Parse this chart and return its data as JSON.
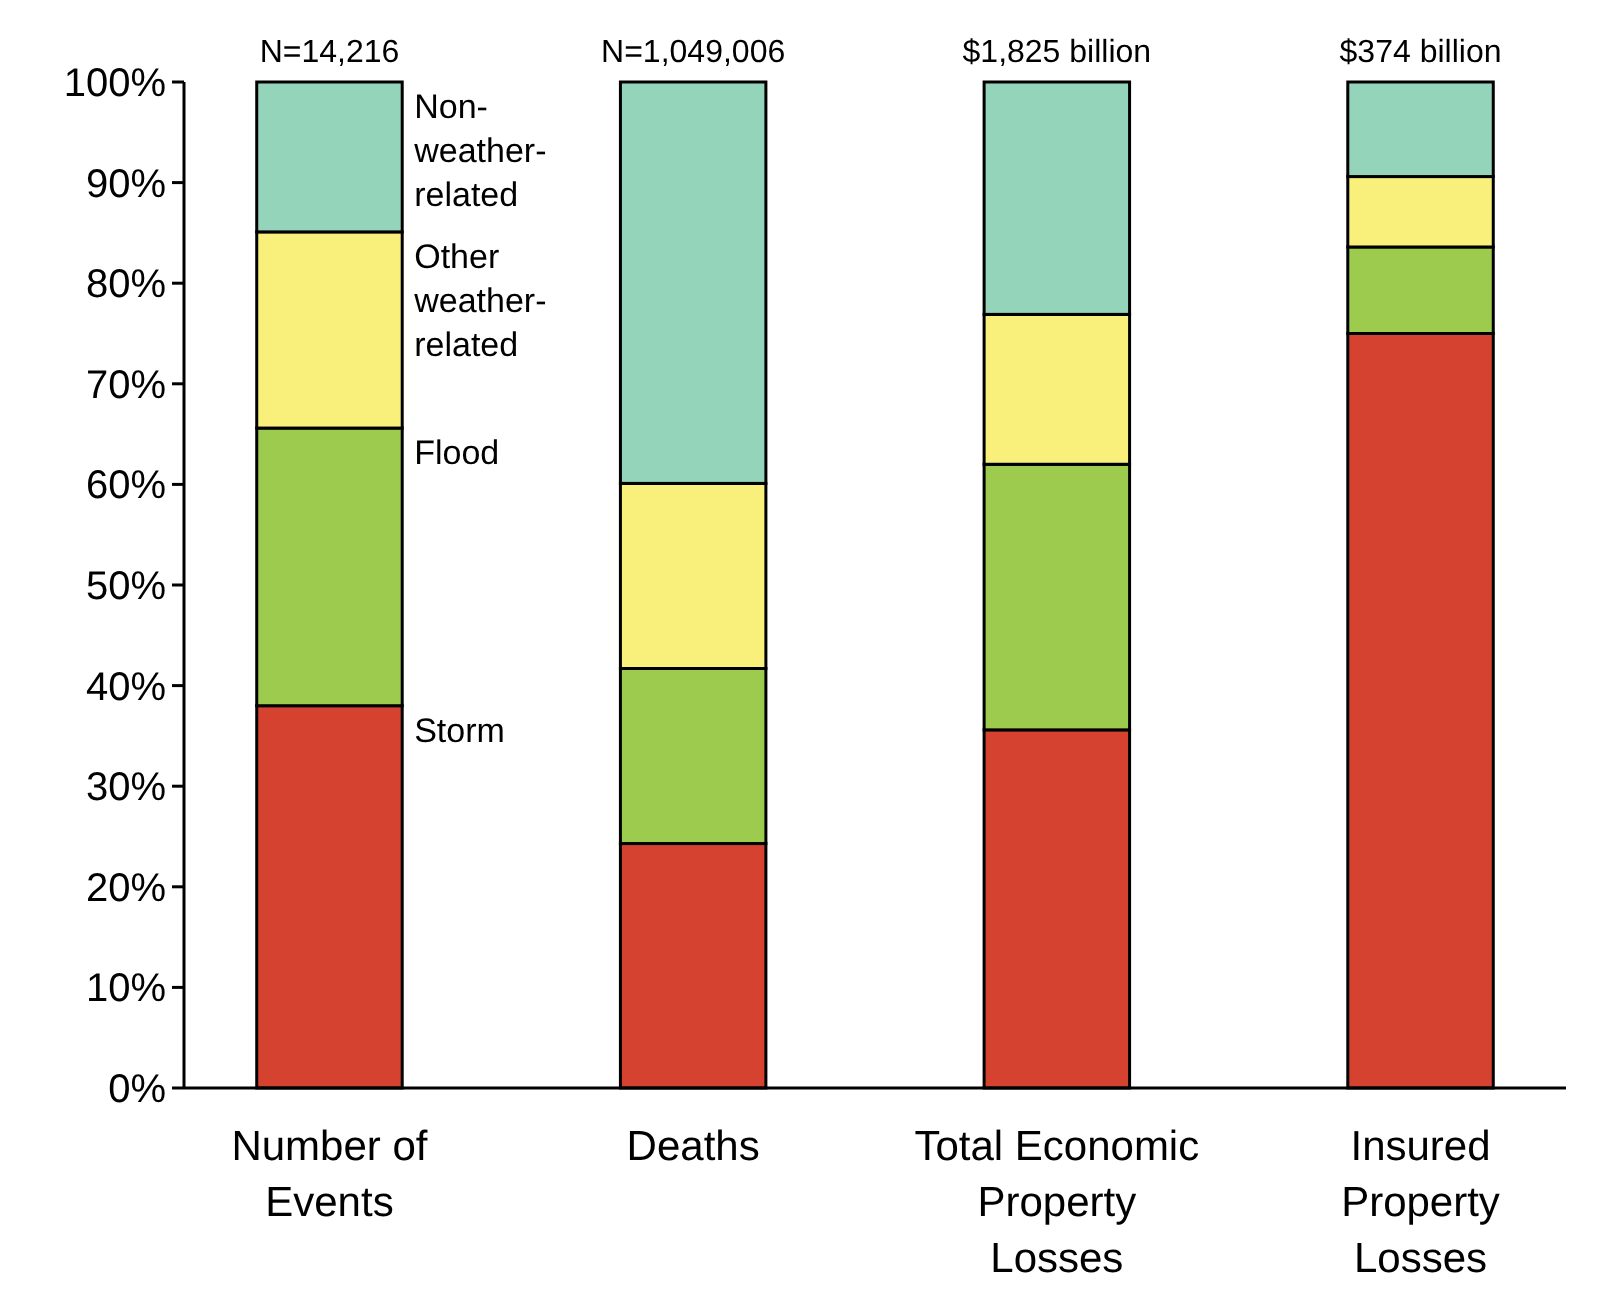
{
  "chart_data": {
    "type": "bar",
    "stacked": true,
    "categories": [
      "Number of Events",
      "Deaths",
      "Total Economic Property Losses",
      "Insured Property Losses"
    ],
    "series": [
      {
        "name": "Storm",
        "color": "#d64230",
        "values": [
          38.0,
          24.3,
          35.6,
          75.0
        ]
      },
      {
        "name": "Flood",
        "color": "#9ccb4e",
        "values": [
          27.6,
          17.4,
          26.4,
          8.6
        ]
      },
      {
        "name": "Other weather-related",
        "color": "#f8f07a",
        "values": [
          19.5,
          18.4,
          14.9,
          7.0
        ]
      },
      {
        "name": "Non-weather-related",
        "color": "#94d4bb",
        "values": [
          14.9,
          39.9,
          23.1,
          9.4
        ]
      }
    ],
    "ylim": [
      0,
      100
    ],
    "yticks": [
      {
        "value": 0,
        "label": "0%"
      },
      {
        "value": 10,
        "label": "10%"
      },
      {
        "value": 20,
        "label": "20%"
      },
      {
        "value": 30,
        "label": "30%"
      },
      {
        "value": 40,
        "label": "40%"
      },
      {
        "value": 50,
        "label": "50%"
      },
      {
        "value": 60,
        "label": "60%"
      },
      {
        "value": 70,
        "label": "70%"
      },
      {
        "value": 80,
        "label": "80%"
      },
      {
        "value": 90,
        "label": "90%"
      },
      {
        "value": 100,
        "label": "100%"
      }
    ],
    "annotations": [
      {
        "text": "N=14,216",
        "x": "Number of Events",
        "y": 100
      },
      {
        "text": "N=1,049,006",
        "x": "Deaths",
        "y": 100
      },
      {
        "text": "$1,825 billion",
        "x": "Total Economic Property Losses",
        "y": 100
      },
      {
        "text": "$374 billion",
        "x": "Insured Property Losses",
        "y": 100
      }
    ],
    "grid": false,
    "legend": false
  }
}
